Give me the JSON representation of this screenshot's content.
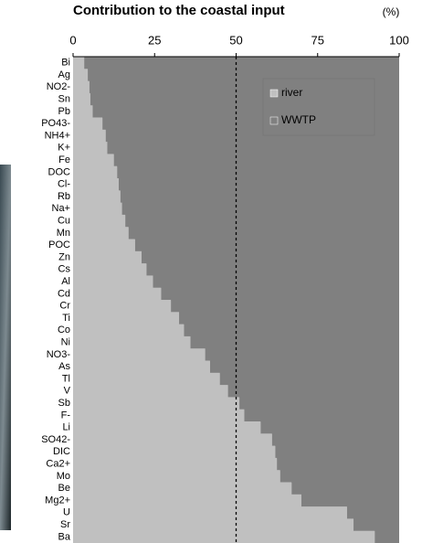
{
  "chart_data": {
    "type": "stacked-barh",
    "title": "Contribution to the coastal input",
    "unit": "(%)",
    "categories": [
      "Bi",
      "Ag",
      "NO2-",
      "Sn",
      "Pb",
      "PO43-",
      "NH4+",
      "K+",
      "Fe",
      "DOC",
      "Cl-",
      "Rb",
      "Na+",
      "Cu",
      "Mn",
      "POC",
      "Zn",
      "Cs",
      "Al",
      "Cd",
      "Cr",
      "Ti",
      "Co",
      "Ni",
      "NO3-",
      "As",
      "Tl",
      "V",
      "Sb",
      "F-",
      "Li",
      "SO42-",
      "DIC",
      "Ca2+",
      "Mo",
      "Be",
      "Mg2+",
      "U",
      "Sr",
      "Ba"
    ],
    "series": [
      {
        "name": "river",
        "color": "#c0c0c0",
        "values": [
          3.4,
          4.5,
          5,
          5.3,
          6,
          9,
          10,
          10.5,
          12.5,
          13.5,
          14,
          14.5,
          15,
          16,
          17,
          19,
          21,
          22.5,
          24.5,
          27,
          30,
          32.5,
          34,
          36,
          40.5,
          42,
          45,
          47.5,
          51,
          52.5,
          57.5,
          61,
          62,
          62.5,
          63.5,
          67,
          70,
          84,
          86,
          92.5
        ]
      },
      {
        "name": "WWTP",
        "color": "#808080",
        "values": [
          96.6,
          95.5,
          95,
          94.7,
          94,
          91,
          90,
          89.5,
          87.5,
          86.5,
          86,
          85.5,
          85,
          84,
          83,
          81,
          79,
          77.5,
          75.5,
          73,
          70,
          67.5,
          66,
          64,
          59.5,
          58,
          55,
          52.5,
          49,
          47.5,
          42.5,
          39,
          38,
          37.5,
          36.5,
          33,
          30,
          16,
          14,
          7.5
        ]
      }
    ],
    "xlim": [
      0,
      100
    ],
    "xticks": [
      0,
      25,
      50,
      75,
      100
    ],
    "reference_line": 50,
    "legend": "upper right"
  }
}
